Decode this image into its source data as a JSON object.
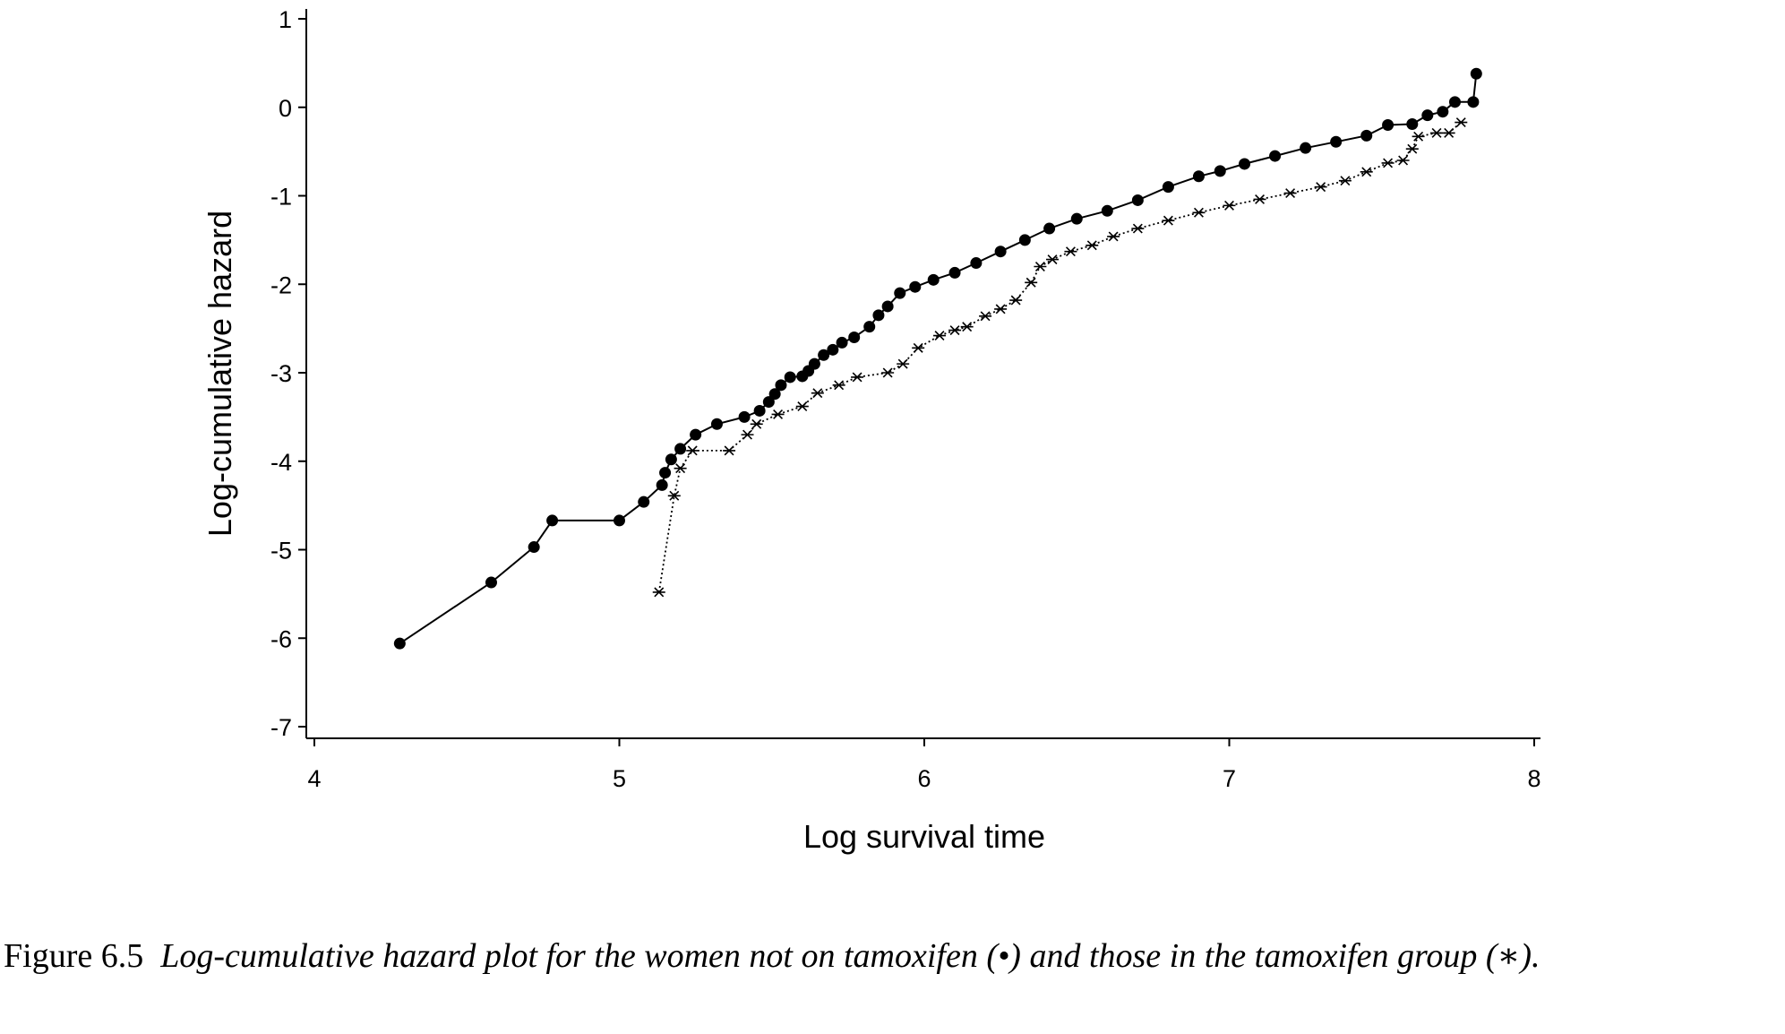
{
  "chart_data": {
    "type": "line",
    "xlabel": "Log survival time",
    "ylabel": "Log-cumulative hazard",
    "xlim": [
      4,
      8
    ],
    "ylim": [
      -7,
      1
    ],
    "xticks": [
      "4",
      "5",
      "6",
      "7",
      "8"
    ],
    "yticks": [
      "1",
      "0",
      "-1",
      "-2",
      "-3",
      "-4",
      "-5",
      "-6",
      "-7"
    ],
    "grid": false,
    "legend": "none",
    "series": [
      {
        "marker": "filled-circle",
        "line": "solid",
        "color": "#000000",
        "points": [
          [
            4.28,
            -6.06
          ],
          [
            4.58,
            -5.37
          ],
          [
            4.72,
            -4.97
          ],
          [
            4.78,
            -4.67
          ],
          [
            5.0,
            -4.67
          ],
          [
            5.08,
            -4.46
          ],
          [
            5.14,
            -4.27
          ],
          [
            5.15,
            -4.13
          ],
          [
            5.17,
            -3.98
          ],
          [
            5.2,
            -3.86
          ],
          [
            5.25,
            -3.7
          ],
          [
            5.32,
            -3.58
          ],
          [
            5.41,
            -3.5
          ],
          [
            5.46,
            -3.43
          ],
          [
            5.49,
            -3.33
          ],
          [
            5.51,
            -3.24
          ],
          [
            5.53,
            -3.14
          ],
          [
            5.56,
            -3.05
          ],
          [
            5.6,
            -3.04
          ],
          [
            5.62,
            -2.98
          ],
          [
            5.64,
            -2.9
          ],
          [
            5.67,
            -2.8
          ],
          [
            5.7,
            -2.74
          ],
          [
            5.73,
            -2.66
          ],
          [
            5.77,
            -2.6
          ],
          [
            5.82,
            -2.48
          ],
          [
            5.85,
            -2.35
          ],
          [
            5.88,
            -2.25
          ],
          [
            5.92,
            -2.1
          ],
          [
            5.97,
            -2.03
          ],
          [
            6.03,
            -1.95
          ],
          [
            6.1,
            -1.87
          ],
          [
            6.17,
            -1.76
          ],
          [
            6.25,
            -1.63
          ],
          [
            6.33,
            -1.5
          ],
          [
            6.41,
            -1.37
          ],
          [
            6.5,
            -1.26
          ],
          [
            6.6,
            -1.17
          ],
          [
            6.7,
            -1.05
          ],
          [
            6.8,
            -0.9
          ],
          [
            6.9,
            -0.78
          ],
          [
            6.97,
            -0.72
          ],
          [
            7.05,
            -0.64
          ],
          [
            7.15,
            -0.55
          ],
          [
            7.25,
            -0.46
          ],
          [
            7.35,
            -0.39
          ],
          [
            7.45,
            -0.32
          ],
          [
            7.52,
            -0.2
          ],
          [
            7.6,
            -0.19
          ],
          [
            7.65,
            -0.09
          ],
          [
            7.7,
            -0.05
          ],
          [
            7.74,
            0.06
          ],
          [
            7.8,
            0.06
          ],
          [
            7.81,
            0.38
          ]
        ]
      },
      {
        "marker": "asterisk",
        "line": "dotted",
        "color": "#000000",
        "points": [
          [
            5.13,
            -5.48
          ],
          [
            5.18,
            -4.39
          ],
          [
            5.2,
            -4.08
          ],
          [
            5.24,
            -3.88
          ],
          [
            5.36,
            -3.88
          ],
          [
            5.42,
            -3.7
          ],
          [
            5.45,
            -3.58
          ],
          [
            5.52,
            -3.47
          ],
          [
            5.6,
            -3.38
          ],
          [
            5.65,
            -3.23
          ],
          [
            5.72,
            -3.14
          ],
          [
            5.78,
            -3.05
          ],
          [
            5.88,
            -3.0
          ],
          [
            5.93,
            -2.9
          ],
          [
            5.98,
            -2.72
          ],
          [
            6.05,
            -2.58
          ],
          [
            6.1,
            -2.52
          ],
          [
            6.14,
            -2.48
          ],
          [
            6.2,
            -2.36
          ],
          [
            6.25,
            -2.28
          ],
          [
            6.3,
            -2.18
          ],
          [
            6.35,
            -1.98
          ],
          [
            6.38,
            -1.8
          ],
          [
            6.42,
            -1.72
          ],
          [
            6.48,
            -1.63
          ],
          [
            6.55,
            -1.56
          ],
          [
            6.62,
            -1.46
          ],
          [
            6.7,
            -1.37
          ],
          [
            6.8,
            -1.28
          ],
          [
            6.9,
            -1.19
          ],
          [
            7.0,
            -1.11
          ],
          [
            7.1,
            -1.04
          ],
          [
            7.2,
            -0.97
          ],
          [
            7.3,
            -0.9
          ],
          [
            7.38,
            -0.83
          ],
          [
            7.45,
            -0.73
          ],
          [
            7.52,
            -0.63
          ],
          [
            7.57,
            -0.6
          ],
          [
            7.6,
            -0.47
          ],
          [
            7.62,
            -0.33
          ],
          [
            7.68,
            -0.29
          ],
          [
            7.72,
            -0.29
          ],
          [
            7.76,
            -0.17
          ]
        ]
      }
    ]
  },
  "caption": {
    "label": "Figure 6.5",
    "text": "Log-cumulative hazard plot for the women not on tamoxifen (•) and those in the tamoxifen group (∗)."
  }
}
